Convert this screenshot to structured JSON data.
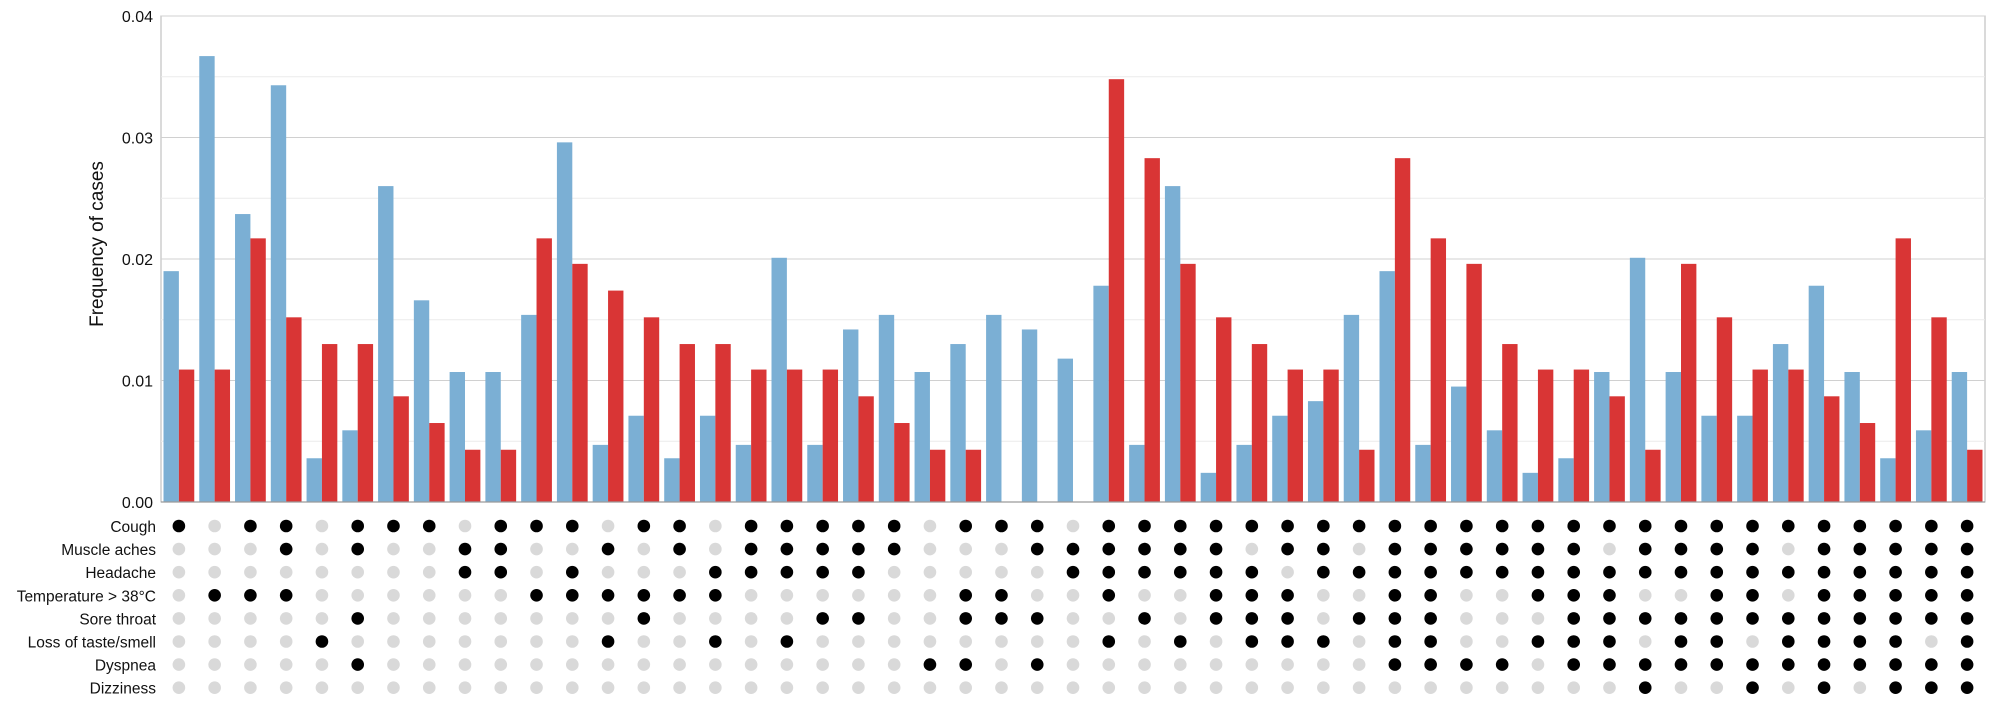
{
  "chart_data": {
    "type": "bar",
    "ylabel": "Frequency of cases",
    "ylim": [
      0,
      0.04
    ],
    "yticks": [
      "0.00",
      "0.01",
      "0.02",
      "0.03",
      "0.04"
    ],
    "grid": true,
    "series": [
      {
        "color": "#7bafd4",
        "values": [
          0.019,
          0.0367,
          0.0237,
          0.0343,
          0.0036,
          0.0059,
          0.026,
          0.0166,
          0.0107,
          0.0107,
          0.0154,
          0.0296,
          0.0047,
          0.0071,
          0.0036,
          0.0071,
          0.0047,
          0.0201,
          0.0047,
          0.0142,
          0.0154,
          0.0107,
          0.013,
          0.0154,
          0.0142,
          0.0118,
          0.0178,
          0.0047,
          0.026,
          0.0024,
          0.0047,
          0.0071,
          0.0083,
          0.0154,
          0.019,
          0.0047,
          0.0095,
          0.0059,
          0.0024,
          0.0036,
          0.0107,
          0.0201,
          0.0107,
          0.0071,
          0.0071,
          0.013,
          0.0178,
          0.0107,
          0.0036,
          0.0059,
          0.0107
        ]
      },
      {
        "color": "#d93535",
        "values": [
          0.0109,
          0.0109,
          0.0217,
          0.0152,
          0.013,
          0.013,
          0.0087,
          0.0065,
          0.0043,
          0.0043,
          0.0217,
          0.0196,
          0.0174,
          0.0152,
          0.013,
          0.013,
          0.0109,
          0.0109,
          0.0109,
          0.0087,
          0.0065,
          0.0043,
          0.0043,
          0,
          0,
          0,
          0.0348,
          0.0283,
          0.0196,
          0.0152,
          0.013,
          0.0109,
          0.0109,
          0.0043,
          0.0283,
          0.0217,
          0.0196,
          0.013,
          0.0109,
          0.0109,
          0.0087,
          0.0043,
          0.0196,
          0.0152,
          0.0109,
          0.0109,
          0.0087,
          0.0065,
          0.0217,
          0.0152,
          0.0043
        ]
      }
    ],
    "matrix_rows": [
      {
        "label": "Cough",
        "present": "101101110111011011111011101111111111111111111111111"
      },
      {
        "label": "Muscle aches",
        "present": "000101001100101011111000111111011011111101111011111"
      },
      {
        "label": "Headache",
        "present": "000000001101000111110000011111101111111111111111111"
      },
      {
        "label": "Temperature > 38°C",
        "present": "011100000011111100000011001001110011001110011011111"
      },
      {
        "label": "Sore throat",
        "present": "000001000000010000110011100101110111000111111111111"
      },
      {
        "label": "Loss of taste/smell",
        "present": "000010000000100101000000001010111011001110110111101"
      },
      {
        "label": "Dyspnea",
        "present": "000001000000000000000110100000000011110111111111111"
      },
      {
        "label": "Dizziness",
        "present": "000000000000000000000000000000000000000001001010111"
      }
    ],
    "dot_colors": {
      "present": "#000000",
      "absent": "#d9d9d9"
    }
  }
}
